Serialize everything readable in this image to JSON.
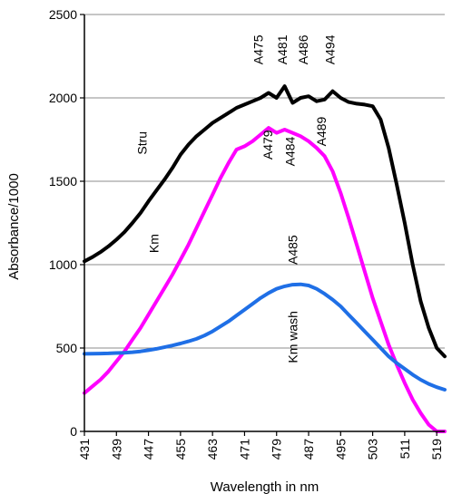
{
  "chart_data": {
    "type": "line",
    "title": "",
    "xlabel": "Wavelength in nm",
    "ylabel": "Absorbance/1000",
    "xlim": [
      431,
      521
    ],
    "ylim": [
      0,
      2500
    ],
    "x_ticks": [
      "431",
      "439",
      "447",
      "455",
      "463",
      "471",
      "479",
      "487",
      "495",
      "503",
      "511",
      "519"
    ],
    "y_ticks": [
      "0",
      "500",
      "1000",
      "1500",
      "2000",
      "2500"
    ],
    "grid": "horizontal",
    "legend": "none",
    "series": [
      {
        "name": "Stru",
        "color": "#000000",
        "x": [
          431,
          433,
          435,
          437,
          439,
          441,
          443,
          445,
          447,
          449,
          451,
          453,
          455,
          457,
          459,
          461,
          463,
          465,
          467,
          469,
          471,
          473,
          475,
          477,
          479,
          481,
          483,
          485,
          487,
          489,
          491,
          493,
          495,
          497,
          499,
          501,
          503,
          505,
          507,
          509,
          511,
          513,
          515,
          517,
          519,
          521
        ],
        "y": [
          1020,
          1045,
          1075,
          1110,
          1150,
          1195,
          1250,
          1310,
          1380,
          1445,
          1510,
          1580,
          1660,
          1720,
          1770,
          1810,
          1850,
          1880,
          1910,
          1940,
          1960,
          1980,
          2000,
          2030,
          2000,
          2070,
          1970,
          2000,
          2010,
          1980,
          1990,
          2040,
          2000,
          1975,
          1965,
          1960,
          1950,
          1870,
          1700,
          1480,
          1250,
          1000,
          780,
          620,
          500,
          450
        ]
      },
      {
        "name": "Km",
        "color": "#ff00ff",
        "x": [
          431,
          433,
          435,
          437,
          439,
          441,
          443,
          445,
          447,
          449,
          451,
          453,
          455,
          457,
          459,
          461,
          463,
          465,
          467,
          469,
          471,
          473,
          475,
          477,
          479,
          481,
          483,
          485,
          487,
          489,
          491,
          493,
          495,
          497,
          499,
          501,
          503,
          505,
          507,
          509,
          511,
          513,
          515,
          517,
          519,
          521
        ],
        "y": [
          230,
          270,
          310,
          360,
          420,
          480,
          550,
          620,
          700,
          780,
          860,
          940,
          1030,
          1120,
          1220,
          1320,
          1420,
          1520,
          1610,
          1690,
          1710,
          1740,
          1780,
          1820,
          1790,
          1810,
          1790,
          1770,
          1740,
          1700,
          1650,
          1560,
          1430,
          1280,
          1120,
          960,
          800,
          660,
          520,
          400,
          290,
          190,
          110,
          40,
          0,
          0
        ]
      },
      {
        "name": "Km wash",
        "color": "#1f6fe6",
        "x": [
          431,
          433,
          435,
          437,
          439,
          441,
          443,
          445,
          447,
          449,
          451,
          453,
          455,
          457,
          459,
          461,
          463,
          465,
          467,
          469,
          471,
          473,
          475,
          477,
          479,
          481,
          483,
          485,
          487,
          489,
          491,
          493,
          495,
          497,
          499,
          501,
          503,
          505,
          507,
          509,
          511,
          513,
          515,
          517,
          519,
          521
        ],
        "y": [
          465,
          466,
          467,
          468,
          470,
          472,
          475,
          480,
          487,
          495,
          505,
          515,
          527,
          540,
          555,
          575,
          600,
          630,
          660,
          695,
          730,
          765,
          800,
          830,
          855,
          870,
          880,
          882,
          875,
          855,
          825,
          790,
          750,
          700,
          650,
          600,
          550,
          500,
          450,
          410,
          375,
          340,
          310,
          285,
          265,
          250
        ]
      }
    ],
    "annotations": [
      {
        "text": "Stru",
        "x": 446.5,
        "y": 1660,
        "rotation": -90
      },
      {
        "text": "Km",
        "x": 449.5,
        "y": 1070,
        "rotation": -90
      },
      {
        "text": "Km wash",
        "x": 484.2,
        "y": 410,
        "rotation": -90
      },
      {
        "text": "A475",
        "x": 475.5,
        "y": 2200,
        "rotation": -90
      },
      {
        "text": "A481",
        "x": 481.5,
        "y": 2200,
        "rotation": -90
      },
      {
        "text": "A486",
        "x": 486.8,
        "y": 2200,
        "rotation": -90
      },
      {
        "text": "A494",
        "x": 493.4,
        "y": 2200,
        "rotation": -90
      },
      {
        "text": "A479",
        "x": 477.9,
        "y": 1630,
        "rotation": -90
      },
      {
        "text": "A484",
        "x": 483.5,
        "y": 1590,
        "rotation": -90
      },
      {
        "text": "A489",
        "x": 491.3,
        "y": 1710,
        "rotation": -90
      },
      {
        "text": "A485",
        "x": 484.2,
        "y": 1000,
        "rotation": -90
      }
    ]
  }
}
